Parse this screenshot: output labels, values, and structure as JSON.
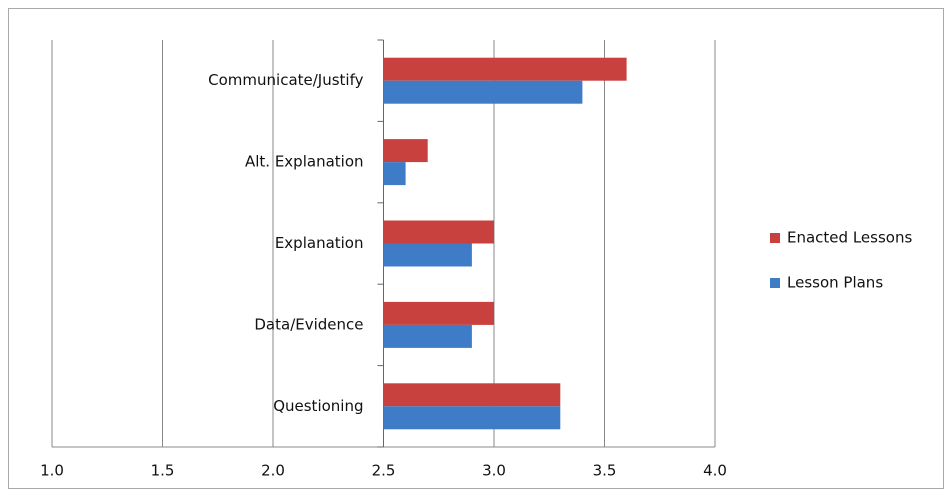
{
  "chart_data": {
    "type": "hbar",
    "categories": [
      "Communicate/Justify",
      "Alt. Explanation",
      "Explanation",
      "Data/Evidence",
      "Questioning"
    ],
    "series": [
      {
        "name": "Enacted Lessons",
        "color": "#c9413e",
        "values": [
          3.6,
          2.7,
          3.0,
          3.0,
          3.3
        ]
      },
      {
        "name": "Lesson Plans",
        "color": "#3f7cc8",
        "values": [
          3.4,
          2.6,
          2.9,
          2.9,
          3.3
        ]
      }
    ],
    "xlim": [
      1.0,
      4.0
    ],
    "xticks": [
      {
        "value": 1,
        "label": "1.0"
      },
      1.5,
      {
        "value": 2,
        "label": "2.0"
      },
      2.5,
      {
        "value": 3,
        "label": "3.0"
      },
      3.5,
      {
        "value": 4,
        "label": "4.0"
      }
    ],
    "axis_crossing": 2.5,
    "grid": true,
    "legend": "right"
  }
}
